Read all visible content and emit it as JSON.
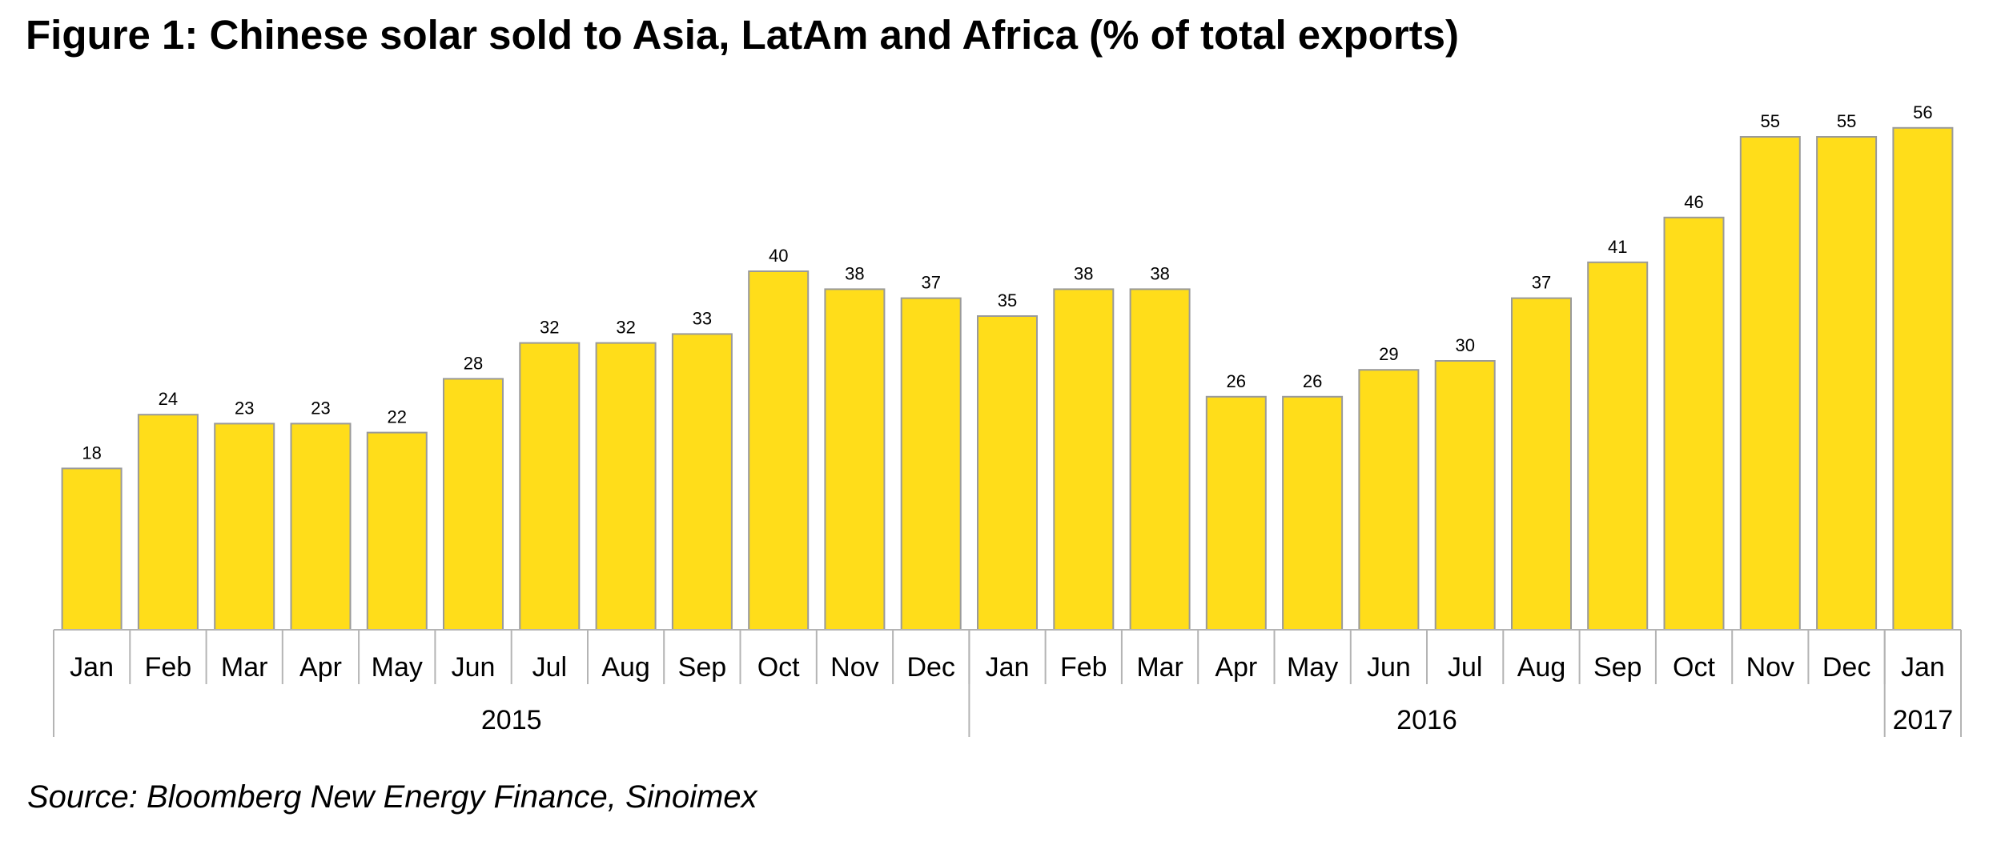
{
  "title": "Figure 1: Chinese solar sold to Asia, LatAm and Africa (% of total exports)",
  "source": "Source: Bloomberg New Energy Finance, Sinoimex",
  "colors": {
    "bar_fill": "#FFDD1A",
    "bar_stroke": "#9A9A9A",
    "axis": "#B4B4B4"
  },
  "chart_data": {
    "type": "bar",
    "title": "Figure 1: Chinese solar sold to Asia, LatAm and Africa (% of total exports)",
    "xlabel": "",
    "ylabel": "",
    "ylim": [
      0,
      60
    ],
    "grid": false,
    "legend": "none",
    "categories": [
      "Jan",
      "Feb",
      "Mar",
      "Apr",
      "May",
      "Jun",
      "Jul",
      "Aug",
      "Sep",
      "Oct",
      "Nov",
      "Dec",
      "Jan",
      "Feb",
      "Mar",
      "Apr",
      "May",
      "Jun",
      "Jul",
      "Aug",
      "Sep",
      "Oct",
      "Nov",
      "Dec",
      "Jan"
    ],
    "values": [
      18,
      24,
      23,
      23,
      22,
      28,
      32,
      32,
      33,
      40,
      38,
      37,
      35,
      38,
      38,
      26,
      26,
      29,
      30,
      37,
      41,
      46,
      55,
      55,
      56
    ],
    "data_labels": [
      "18",
      "24",
      "23",
      "23",
      "22",
      "28",
      "32",
      "32",
      "33",
      "40",
      "38",
      "37",
      "35",
      "38",
      "38",
      "26",
      "26",
      "29",
      "30",
      "37",
      "41",
      "46",
      "55",
      "55",
      "56"
    ],
    "year_groups": [
      {
        "label": "2015",
        "count": 12
      },
      {
        "label": "2016",
        "count": 12
      },
      {
        "label": "2017",
        "count": 1
      }
    ]
  }
}
